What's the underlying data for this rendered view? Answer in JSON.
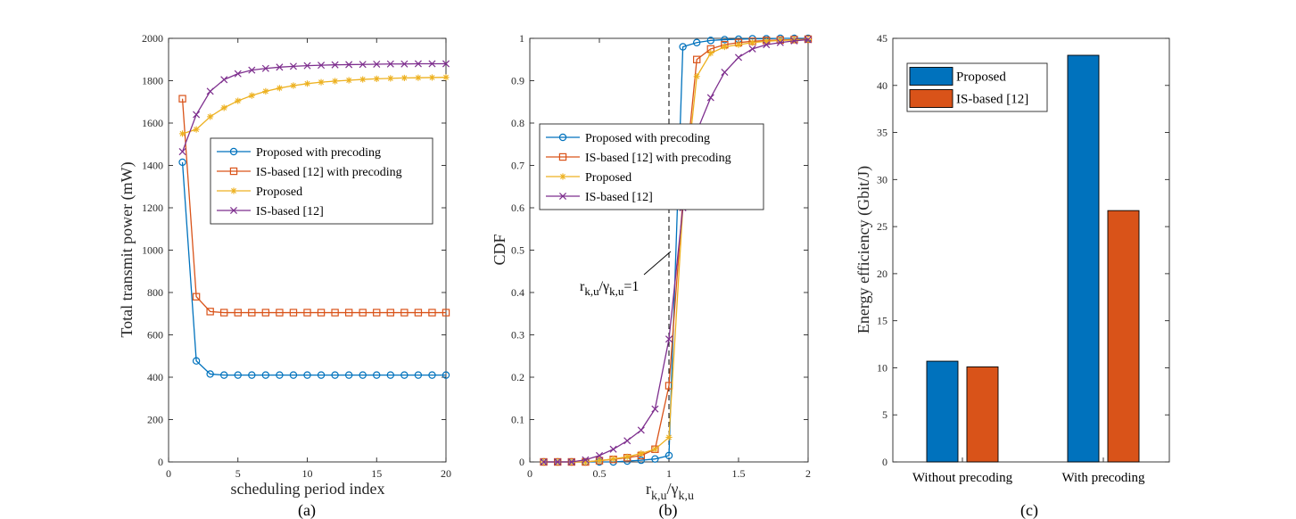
{
  "panels": [
    "(a)",
    "(b)",
    "(c)"
  ],
  "colors": {
    "blue": "#0072BD",
    "red": "#D95319",
    "yellow": "#EDB120",
    "purple": "#7E2F8E",
    "axis": "#262626"
  },
  "chart_data": [
    {
      "type": "line",
      "panel": "(a)",
      "xlabel": "scheduling period index",
      "ylabel": "Total transmit power (mW)",
      "xlim": [
        0,
        20
      ],
      "ylim": [
        0,
        2000
      ],
      "xticks": [
        0,
        5,
        10,
        15,
        20
      ],
      "yticks": [
        0,
        200,
        400,
        600,
        800,
        1000,
        1200,
        1400,
        1600,
        1800,
        2000
      ],
      "x": [
        1,
        2,
        3,
        4,
        5,
        6,
        7,
        8,
        9,
        10,
        11,
        12,
        13,
        14,
        15,
        16,
        17,
        18,
        19,
        20
      ],
      "legend_position": "center-right",
      "series": [
        {
          "name": "Proposed with precoding",
          "color": "#0072BD",
          "marker": "circle",
          "values": [
            1415,
            477,
            415,
            410,
            410,
            410,
            410,
            410,
            410,
            410,
            410,
            410,
            410,
            410,
            410,
            410,
            410,
            410,
            410,
            410
          ]
        },
        {
          "name": "IS-based [12] with precoding",
          "color": "#D95319",
          "marker": "square",
          "values": [
            1715,
            780,
            710,
            705,
            705,
            705,
            705,
            705,
            705,
            705,
            705,
            705,
            705,
            705,
            705,
            705,
            705,
            705,
            705,
            705
          ]
        },
        {
          "name": "Proposed",
          "color": "#EDB120",
          "marker": "asterisk",
          "values": [
            1550,
            1570,
            1630,
            1672,
            1705,
            1730,
            1750,
            1765,
            1777,
            1786,
            1793,
            1798,
            1802,
            1806,
            1809,
            1811,
            1813,
            1814,
            1815,
            1816
          ]
        },
        {
          "name": "IS-based [12]",
          "color": "#7E2F8E",
          "marker": "x",
          "values": [
            1465,
            1640,
            1750,
            1805,
            1833,
            1850,
            1858,
            1864,
            1868,
            1871,
            1873,
            1875,
            1876,
            1877,
            1878,
            1879,
            1879,
            1880,
            1880,
            1880
          ]
        }
      ]
    },
    {
      "type": "line",
      "panel": "(b)",
      "xlabel": "r",
      "xlabel_sub1": "k,u",
      "xlabel_mid": "/γ",
      "xlabel_sub2": "k,u",
      "ylabel": "CDF",
      "xlim": [
        0,
        2
      ],
      "ylim": [
        0,
        1
      ],
      "xticks": [
        0,
        0.5,
        1,
        1.5,
        2
      ],
      "xtick_labels": [
        "0",
        "0.5",
        "1",
        "1.5",
        "2"
      ],
      "yticks": [
        0,
        0.1,
        0.2,
        0.3,
        0.4,
        0.5,
        0.6,
        0.7,
        0.8,
        0.9,
        1
      ],
      "ytick_labels": [
        "0",
        "0.1",
        "0.2",
        "0.3",
        "0.4",
        "0.5",
        "0.6",
        "0.7",
        "0.8",
        "0.9",
        "1"
      ],
      "x": [
        0.1,
        0.2,
        0.3,
        0.4,
        0.5,
        0.6,
        0.7,
        0.8,
        0.9,
        1.0,
        1.1,
        1.2,
        1.3,
        1.4,
        1.5,
        1.6,
        1.7,
        1.8,
        1.9,
        2.0
      ],
      "annotation": {
        "text": "r",
        "sub1": "k,u",
        "mid": "/γ",
        "sub2": "k,u",
        "tail": "=1",
        "x": 1.0,
        "y": 0.43
      },
      "reference_line_x": 1.0,
      "legend_position": "top-center",
      "series": [
        {
          "name": "Proposed with precoding",
          "color": "#0072BD",
          "marker": "circle",
          "values": [
            0,
            0,
            0,
            0,
            0,
            0,
            0.002,
            0.004,
            0.007,
            0.015,
            0.98,
            0.99,
            0.995,
            0.997,
            0.998,
            0.999,
            0.999,
            1.0,
            1.0,
            1.0
          ]
        },
        {
          "name": "IS-based [12] with precoding",
          "color": "#D95319",
          "marker": "square",
          "values": [
            0,
            0,
            0,
            0,
            0.003,
            0.006,
            0.01,
            0.015,
            0.03,
            0.18,
            0.62,
            0.95,
            0.975,
            0.985,
            0.99,
            0.993,
            0.995,
            0.996,
            0.997,
            0.998
          ]
        },
        {
          "name": "Proposed",
          "color": "#EDB120",
          "marker": "asterisk",
          "values": [
            0,
            0,
            0,
            0,
            0.003,
            0.007,
            0.012,
            0.02,
            0.03,
            0.058,
            0.6,
            0.91,
            0.965,
            0.98,
            0.985,
            0.99,
            0.993,
            0.995,
            0.996,
            0.997
          ]
        },
        {
          "name": "IS-based [12]",
          "color": "#7E2F8E",
          "marker": "x",
          "values": [
            0,
            0,
            0,
            0.005,
            0.015,
            0.03,
            0.05,
            0.075,
            0.125,
            0.29,
            0.6,
            0.78,
            0.86,
            0.92,
            0.955,
            0.975,
            0.985,
            0.99,
            0.994,
            0.997
          ]
        }
      ]
    },
    {
      "type": "bar",
      "panel": "(c)",
      "ylabel": "Energy efficiency (Gbit/J)",
      "ylim": [
        0,
        45
      ],
      "yticks": [
        0,
        5,
        10,
        15,
        20,
        25,
        30,
        35,
        40,
        45
      ],
      "categories": [
        "Without precoding",
        "With precoding"
      ],
      "legend_position": "top-left",
      "series": [
        {
          "name": "Proposed",
          "color": "#0072BD",
          "values": [
            10.7,
            43.2
          ]
        },
        {
          "name": "IS-based [12]",
          "color": "#D95319",
          "values": [
            10.1,
            26.7
          ]
        }
      ]
    }
  ]
}
